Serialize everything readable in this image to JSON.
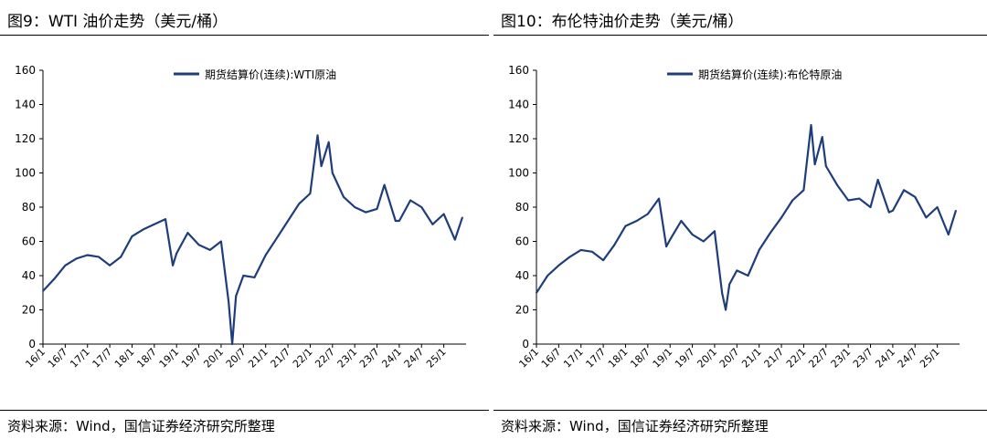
{
  "panels": [
    {
      "title": "图9：WTI 油价走势（美元/桶）",
      "source": "资料来源：Wind，国信证券经济研究所整理",
      "chart_data": {
        "type": "line",
        "x": [
          "2016-01",
          "2016-04",
          "2016-07",
          "2016-10",
          "2017-01",
          "2017-04",
          "2017-07",
          "2017-10",
          "2018-01",
          "2018-04",
          "2018-07",
          "2018-10",
          "2018-12",
          "2019-01",
          "2019-04",
          "2019-07",
          "2019-10",
          "2020-01",
          "2020-03",
          "2020-04",
          "2020-05",
          "2020-07",
          "2020-10",
          "2021-01",
          "2021-04",
          "2021-07",
          "2021-10",
          "2022-01",
          "2022-03",
          "2022-04",
          "2022-06",
          "2022-07",
          "2022-10",
          "2023-01",
          "2023-04",
          "2023-07",
          "2023-09",
          "2023-12",
          "2024-01",
          "2024-04",
          "2024-07",
          "2024-10",
          "2025-01",
          "2025-04",
          "2025-06"
        ],
        "series": [
          {
            "name": "期货结算价(连续):WTI原油",
            "values": [
              31,
              38,
              46,
              50,
              52,
              51,
              46,
              51,
              63,
              67,
              70,
              73,
              46,
              53,
              65,
              58,
              55,
              60,
              25,
              0,
              28,
              40,
              39,
              52,
              62,
              72,
              82,
              88,
              122,
              104,
              118,
              100,
              86,
              80,
              77,
              79,
              93,
              72,
              72,
              84,
              80,
              70,
              76,
              61,
              74
            ]
          }
        ],
        "xticks": [
          "16/1",
          "16/7",
          "17/1",
          "17/7",
          "18/1",
          "18/7",
          "19/1",
          "19/7",
          "20/1",
          "20/7",
          "21/1",
          "21/7",
          "22/1",
          "22/7",
          "23/1",
          "23/7",
          "24/1",
          "24/7",
          "25/1"
        ],
        "ylim": [
          0,
          160
        ],
        "yticks": [
          0,
          20,
          40,
          60,
          80,
          100,
          120,
          140,
          160
        ],
        "legend_position": "top-center",
        "color": "#1f3d7a"
      }
    },
    {
      "title": "图10：布伦特油价走势（美元/桶）",
      "source": "资料来源：Wind，国信证券经济研究所整理",
      "chart_data": {
        "type": "line",
        "x": [
          "2016-01",
          "2016-04",
          "2016-07",
          "2016-10",
          "2017-01",
          "2017-04",
          "2017-07",
          "2017-10",
          "2018-01",
          "2018-04",
          "2018-07",
          "2018-10",
          "2018-12",
          "2019-01",
          "2019-04",
          "2019-07",
          "2019-10",
          "2020-01",
          "2020-03",
          "2020-04",
          "2020-05",
          "2020-07",
          "2020-10",
          "2021-01",
          "2021-04",
          "2021-07",
          "2021-10",
          "2022-01",
          "2022-03",
          "2022-04",
          "2022-06",
          "2022-07",
          "2022-10",
          "2023-01",
          "2023-04",
          "2023-07",
          "2023-09",
          "2023-12",
          "2024-01",
          "2024-04",
          "2024-07",
          "2024-10",
          "2025-01",
          "2025-04",
          "2025-06"
        ],
        "series": [
          {
            "name": "期货结算价(连续):布伦特原油",
            "values": [
              30,
              40,
              46,
              51,
              55,
              54,
              49,
              58,
              69,
              72,
              76,
              85,
              57,
              61,
              72,
              64,
              60,
              66,
              30,
              20,
              35,
              43,
              40,
              55,
              65,
              74,
              84,
              90,
              128,
              105,
              121,
              104,
              93,
              84,
              85,
              80,
              96,
              77,
              78,
              90,
              86,
              74,
              80,
              64,
              78
            ]
          }
        ],
        "xticks": [
          "16/1",
          "16/7",
          "17/1",
          "17/7",
          "18/1",
          "18/7",
          "19/1",
          "19/7",
          "20/1",
          "20/7",
          "21/1",
          "21/7",
          "22/1",
          "22/7",
          "23/1",
          "23/7",
          "24/1",
          "24/7",
          "25/1"
        ],
        "ylim": [
          0,
          160
        ],
        "yticks": [
          0,
          20,
          40,
          60,
          80,
          100,
          120,
          140,
          160
        ],
        "legend_position": "top-center",
        "color": "#1f3d7a"
      }
    }
  ]
}
